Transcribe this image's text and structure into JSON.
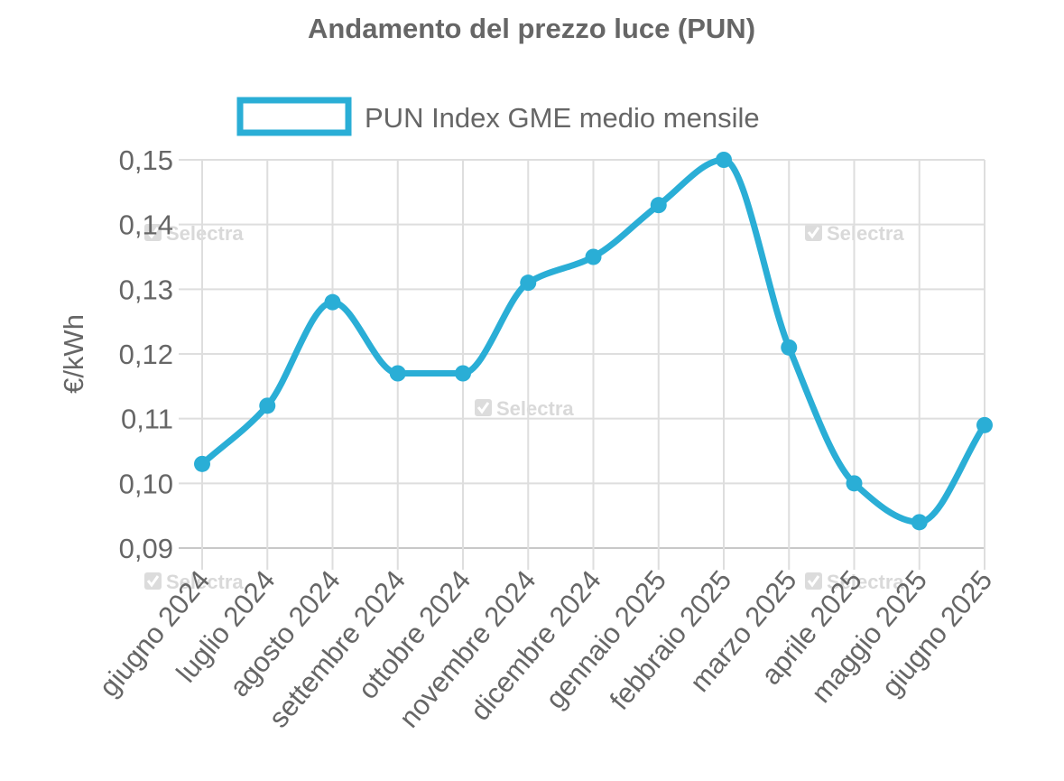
{
  "chart_data": {
    "type": "line",
    "title": "Andamento del prezzo luce (PUN)",
    "xlabel": "",
    "ylabel": "€/kWh",
    "categories": [
      "giugno 2024",
      "luglio 2024",
      "agosto 2024",
      "settembre 2024",
      "ottobre 2024",
      "novembre 2024",
      "dicembre 2024",
      "gennaio 2025",
      "febbraio 2025",
      "marzo 2025",
      "aprile 2025",
      "maggio 2025",
      "giugno 2025"
    ],
    "series": [
      {
        "name": "PUN Index GME medio mensile",
        "values": [
          0.103,
          0.112,
          0.128,
          0.117,
          0.117,
          0.131,
          0.135,
          0.143,
          0.15,
          0.121,
          0.1,
          0.094,
          0.109
        ],
        "color": "#2aaed6"
      }
    ],
    "ylim": [
      0.09,
      0.15
    ],
    "yticks": [
      "0,09",
      "0,10",
      "0,11",
      "0,12",
      "0,13",
      "0,14",
      "0,15"
    ],
    "grid": true,
    "legend_position": "top-center",
    "watermark": "Selectra"
  }
}
